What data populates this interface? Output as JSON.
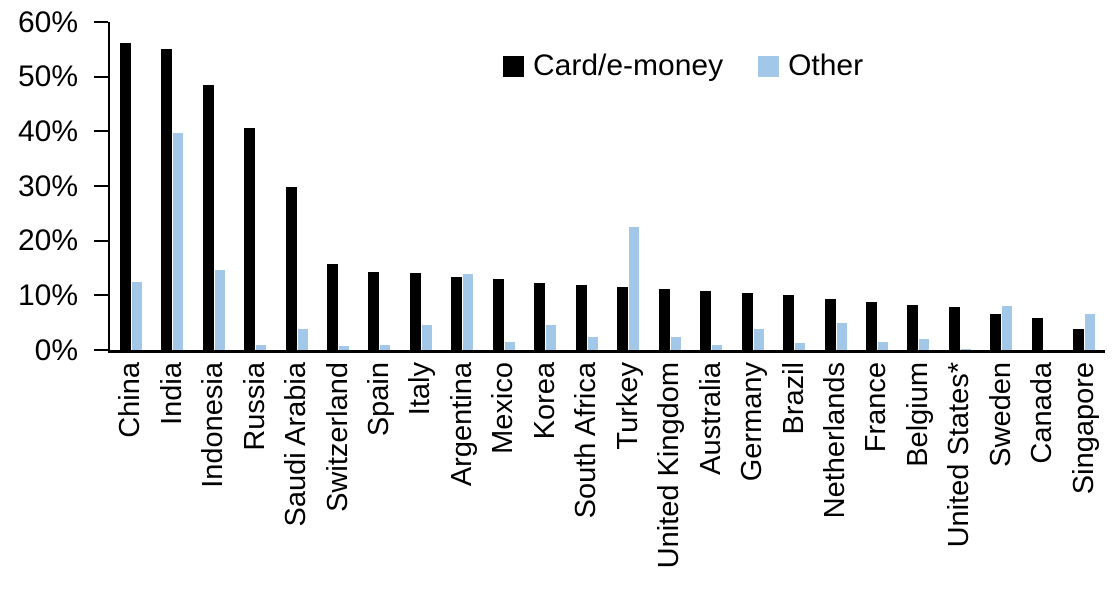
{
  "chart_data": {
    "type": "bar",
    "title": "",
    "xlabel": "",
    "ylabel": "",
    "ylim": [
      0,
      60
    ],
    "grid": false,
    "legend_position": "top-center",
    "axis_color": "#000000",
    "categories": [
      "China",
      "India",
      "Indonesia",
      "Russia",
      "Saudi Arabia",
      "Switzerland",
      "Spain",
      "Italy",
      "Argentina",
      "Mexico",
      "Korea",
      "South Africa",
      "Turkey",
      "United Kingdom",
      "Australia",
      "Germany",
      "Brazil",
      "Netherlands",
      "France",
      "Belgium",
      "United States*",
      "Sweden",
      "Canada",
      "Singapore"
    ],
    "series": [
      {
        "name": "Card/e-money",
        "color": "#000000",
        "values": [
          56.2,
          55.1,
          48.4,
          40.6,
          29.9,
          15.7,
          14.2,
          14.1,
          13.4,
          12.9,
          12.2,
          11.8,
          11.6,
          11.1,
          10.8,
          10.5,
          10.0,
          9.3,
          8.7,
          8.2,
          7.9,
          6.5,
          5.9,
          3.9
        ]
      },
      {
        "name": "Other",
        "color": "#A3C7E9",
        "values": [
          12.4,
          39.7,
          14.6,
          1.0,
          3.9,
          0.8,
          1.0,
          4.6,
          13.9,
          1.4,
          4.6,
          2.4,
          22.5,
          2.3,
          1.0,
          3.9,
          1.2,
          4.9,
          1.5,
          2.1,
          0.2,
          8.1,
          0,
          6.6
        ]
      }
    ],
    "yticks": [
      {
        "value": 0,
        "label": "0%"
      },
      {
        "value": 10,
        "label": "10%"
      },
      {
        "value": 20,
        "label": "20%"
      },
      {
        "value": 30,
        "label": "30%"
      },
      {
        "value": 40,
        "label": "40%"
      },
      {
        "value": 50,
        "label": "50%"
      },
      {
        "value": 60,
        "label": "60%"
      }
    ]
  }
}
